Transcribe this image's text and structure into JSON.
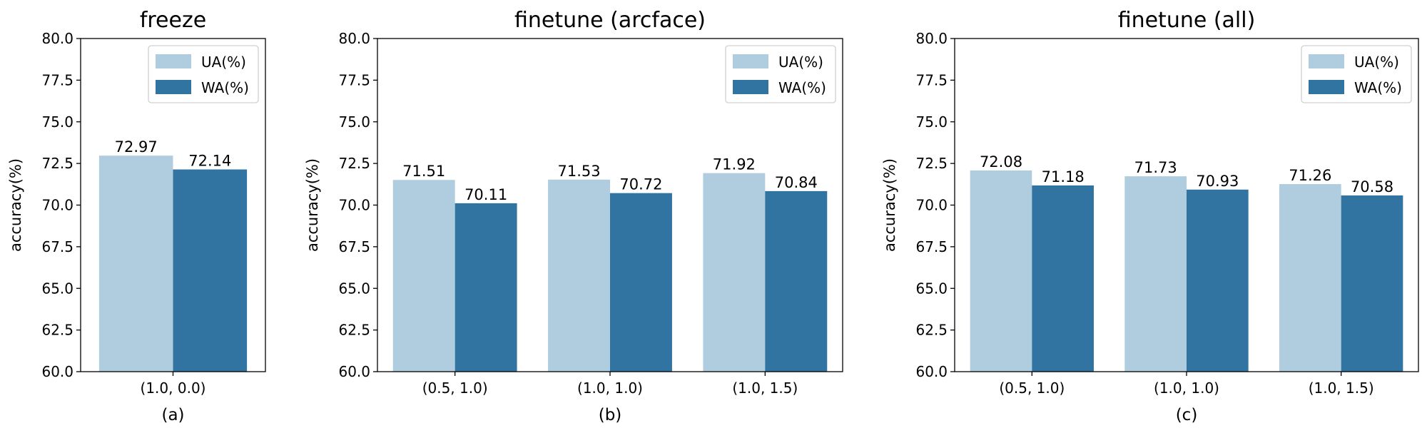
{
  "colors": {
    "UA": "#b0cde0",
    "WA": "#3274a1"
  },
  "chart_data": [
    {
      "type": "bar",
      "title": "freeze",
      "ylabel": "accuracy(%)",
      "xlabel": "(a)",
      "ylim": [
        60.0,
        80.0
      ],
      "yticks": [
        "60.0",
        "62.5",
        "65.0",
        "67.5",
        "70.0",
        "72.5",
        "75.0",
        "77.5",
        "80.0"
      ],
      "categories": [
        "(1.0, 0.0)"
      ],
      "series": [
        {
          "name": "UA(%)",
          "values": [
            72.97
          ]
        },
        {
          "name": "WA(%)",
          "values": [
            72.14
          ]
        }
      ],
      "data_labels": [
        [
          "72.97"
        ],
        [
          "72.14"
        ]
      ],
      "legend": "top-right",
      "grid": false
    },
    {
      "type": "bar",
      "title": "finetune (arcface)",
      "ylabel": "accuracy(%)",
      "xlabel": "(b)",
      "ylim": [
        60.0,
        80.0
      ],
      "yticks": [
        "60.0",
        "62.5",
        "65.0",
        "67.5",
        "70.0",
        "72.5",
        "75.0",
        "77.5",
        "80.0"
      ],
      "categories": [
        "(0.5, 1.0)",
        "(1.0, 1.0)",
        "(1.0, 1.5)"
      ],
      "series": [
        {
          "name": "UA(%)",
          "values": [
            71.51,
            71.53,
            71.92
          ]
        },
        {
          "name": "WA(%)",
          "values": [
            70.11,
            70.72,
            70.84
          ]
        }
      ],
      "data_labels": [
        [
          "71.51",
          "71.53",
          "71.92"
        ],
        [
          "70.11",
          "70.72",
          "70.84"
        ]
      ],
      "legend": "top-right",
      "grid": false
    },
    {
      "type": "bar",
      "title": "finetune (all)",
      "ylabel": "accuracy(%)",
      "xlabel": "(c)",
      "ylim": [
        60.0,
        80.0
      ],
      "yticks": [
        "60.0",
        "62.5",
        "65.0",
        "67.5",
        "70.0",
        "72.5",
        "75.0",
        "77.5",
        "80.0"
      ],
      "categories": [
        "(0.5, 1.0)",
        "(1.0, 1.0)",
        "(1.0, 1.5)"
      ],
      "series": [
        {
          "name": "UA(%)",
          "values": [
            72.08,
            71.73,
            71.26
          ]
        },
        {
          "name": "WA(%)",
          "values": [
            71.18,
            70.93,
            70.58
          ]
        }
      ],
      "data_labels": [
        [
          "72.08",
          "71.73",
          "71.26"
        ],
        [
          "71.18",
          "70.93",
          "70.58"
        ]
      ],
      "legend": "top-right",
      "grid": false
    }
  ]
}
